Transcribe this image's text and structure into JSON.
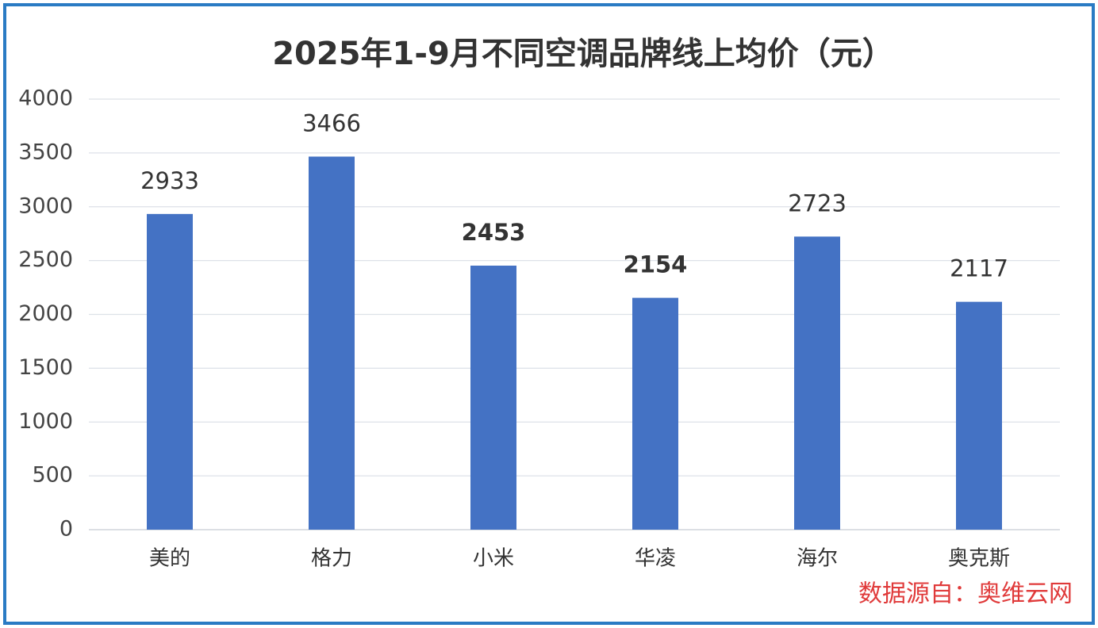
{
  "chart_data": {
    "type": "bar",
    "title": "2025年1-9月不同空调品牌线上均价（元）",
    "categories": [
      "美的",
      "格力",
      "小米",
      "华凌",
      "海尔",
      "奥克斯"
    ],
    "values": [
      2933,
      3466,
      2453,
      2154,
      2723,
      2117
    ],
    "color": "#4472c4",
    "ylim": [
      0,
      4000
    ],
    "yticks": [
      0,
      500,
      1000,
      1500,
      2000,
      2500,
      3000,
      3500,
      4000
    ],
    "grid": true,
    "bold_value_labels": [
      2,
      3
    ],
    "source": "数据源自：奥维云网",
    "source_color": "#e03a3a"
  }
}
